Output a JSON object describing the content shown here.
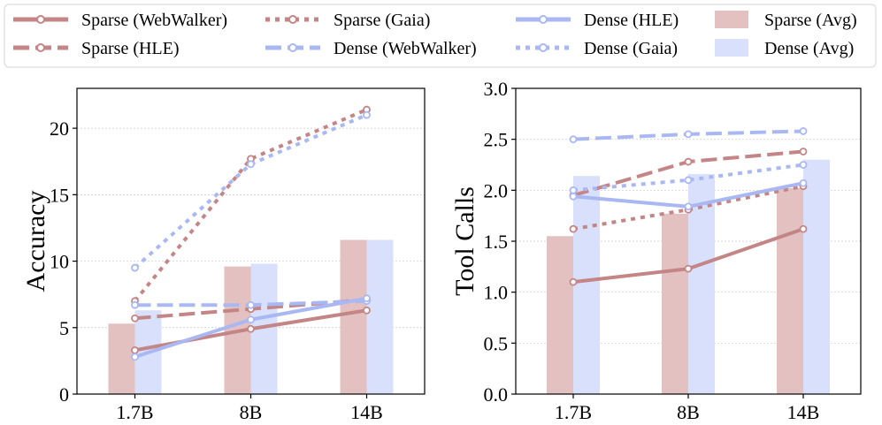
{
  "legend": {
    "entries": [
      {
        "label": "Sparse (WebWalker)",
        "kind": "line",
        "color": "#c48586",
        "dash": "solid"
      },
      {
        "label": "Sparse (HLE)",
        "kind": "line",
        "color": "#c48586",
        "dash": "dashed"
      },
      {
        "label": "Sparse (Gaia)",
        "kind": "line",
        "color": "#c48586",
        "dash": "dotted"
      },
      {
        "label": "Dense (WebWalker)",
        "kind": "line",
        "color": "#a9b8f3",
        "dash": "dashed"
      },
      {
        "label": "Dense (HLE)",
        "kind": "line",
        "color": "#a9b8f3",
        "dash": "solid"
      },
      {
        "label": "Dense (Gaia)",
        "kind": "line",
        "color": "#a9b8f3",
        "dash": "dotted"
      },
      {
        "label": "Sparse (Avg)",
        "kind": "bar",
        "color": "#e4c1c1"
      },
      {
        "label": "Dense (Avg)",
        "kind": "bar",
        "color": "#d8e0fb"
      }
    ]
  },
  "chart_data": [
    {
      "type": "bar+line",
      "title": "",
      "xlabel": "",
      "ylabel": "Accuracy",
      "categories": [
        "1.7B",
        "8B",
        "14B"
      ],
      "ylim": [
        0,
        23
      ],
      "yticks": [
        "0",
        "5",
        "10",
        "15",
        "20"
      ],
      "bars": [
        {
          "name": "Sparse (Avg)",
          "values": [
            5.3,
            9.6,
            11.6
          ]
        },
        {
          "name": "Dense (Avg)",
          "values": [
            6.3,
            9.8,
            11.6
          ]
        }
      ],
      "series": [
        {
          "name": "Sparse (WebWalker)",
          "values": [
            3.3,
            4.9,
            6.3
          ]
        },
        {
          "name": "Sparse (HLE)",
          "values": [
            5.7,
            6.4,
            7.1
          ]
        },
        {
          "name": "Sparse (Gaia)",
          "values": [
            7.0,
            17.7,
            21.4
          ]
        },
        {
          "name": "Dense (WebWalker)",
          "values": [
            6.7,
            6.7,
            7.0
          ]
        },
        {
          "name": "Dense (HLE)",
          "values": [
            2.8,
            5.6,
            7.2
          ]
        },
        {
          "name": "Dense (Gaia)",
          "values": [
            9.5,
            17.3,
            21.0
          ]
        }
      ]
    },
    {
      "type": "bar+line",
      "title": "",
      "xlabel": "",
      "ylabel": "Tool Calls",
      "categories": [
        "1.7B",
        "8B",
        "14B"
      ],
      "ylim": [
        0,
        3.0
      ],
      "yticks": [
        "0.0",
        "0.5",
        "1.0",
        "1.5",
        "2.0",
        "2.5",
        "3.0"
      ],
      "bars": [
        {
          "name": "Sparse (Avg)",
          "values": [
            1.55,
            1.77,
            2.02
          ]
        },
        {
          "name": "Dense (Avg)",
          "values": [
            2.14,
            2.16,
            2.3
          ]
        }
      ],
      "series": [
        {
          "name": "Sparse (WebWalker)",
          "values": [
            1.1,
            1.23,
            1.62
          ]
        },
        {
          "name": "Sparse (HLE)",
          "values": [
            1.95,
            2.28,
            2.38
          ]
        },
        {
          "name": "Sparse (Gaia)",
          "values": [
            1.62,
            1.81,
            2.04
          ]
        },
        {
          "name": "Dense (WebWalker)",
          "values": [
            2.5,
            2.55,
            2.58
          ]
        },
        {
          "name": "Dense (HLE)",
          "values": [
            1.94,
            1.84,
            2.07
          ]
        },
        {
          "name": "Dense (Gaia)",
          "values": [
            2.0,
            2.1,
            2.25
          ]
        }
      ]
    }
  ]
}
